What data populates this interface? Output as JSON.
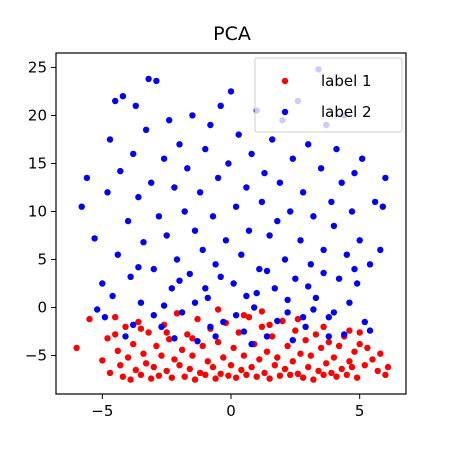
{
  "chart_data": {
    "type": "scatter",
    "title": "PCA",
    "xlabel": "",
    "ylabel": "",
    "xlim": [
      -6.8,
      6.8
    ],
    "ylim": [
      -9,
      26.5
    ],
    "xticks": [
      -5,
      0,
      5
    ],
    "xtick_labels": [
      "−5",
      "0",
      "5"
    ],
    "yticks": [
      -5,
      0,
      5,
      10,
      15,
      20,
      25
    ],
    "ytick_labels": [
      "−5",
      "0",
      "5",
      "10",
      "15",
      "20",
      "25"
    ],
    "grid": false,
    "legend": {
      "placement": "top-right"
    },
    "series": [
      {
        "name": "label 1",
        "color": "#ff0000",
        "points": [
          [
            -6.0,
            -4.2
          ],
          [
            -5.5,
            -1.2
          ],
          [
            -5.0,
            -5.5
          ],
          [
            -4.8,
            -3.2
          ],
          [
            -4.7,
            -6.8
          ],
          [
            -4.5,
            -1.0
          ],
          [
            -4.4,
            -4.5
          ],
          [
            -4.3,
            -6.0
          ],
          [
            -4.2,
            -7.2
          ],
          [
            -4.1,
            -2.0
          ],
          [
            -4.0,
            -5.2
          ],
          [
            -3.9,
            -7.5
          ],
          [
            -3.8,
            -3.8
          ],
          [
            -3.7,
            -6.5
          ],
          [
            -3.6,
            -1.5
          ],
          [
            -3.5,
            -7.0
          ],
          [
            -3.4,
            -4.8
          ],
          [
            -3.3,
            -5.8
          ],
          [
            -3.2,
            -2.6
          ],
          [
            -3.1,
            -7.4
          ],
          [
            -3.0,
            -6.2
          ],
          [
            -2.9,
            -4.0
          ],
          [
            -2.8,
            -7.1
          ],
          [
            -2.7,
            -5.0
          ],
          [
            -2.6,
            -1.8
          ],
          [
            -2.5,
            -6.6
          ],
          [
            -2.4,
            -3.3
          ],
          [
            -2.3,
            -7.3
          ],
          [
            -2.2,
            -5.4
          ],
          [
            -2.1,
            -0.6
          ],
          [
            -2.0,
            -6.0
          ],
          [
            -1.9,
            -4.4
          ],
          [
            -1.8,
            -7.2
          ],
          [
            -1.7,
            -2.8
          ],
          [
            -1.6,
            -6.4
          ],
          [
            -1.5,
            -5.0
          ],
          [
            -1.4,
            -7.5
          ],
          [
            -1.3,
            -1.2
          ],
          [
            -1.2,
            -6.8
          ],
          [
            -1.1,
            -4.0
          ],
          [
            -1.0,
            -7.0
          ],
          [
            -0.9,
            -5.6
          ],
          [
            -0.8,
            -2.2
          ],
          [
            -0.7,
            -6.2
          ],
          [
            -0.6,
            -7.4
          ],
          [
            -0.5,
            -3.6
          ],
          [
            -0.4,
            -6.9
          ],
          [
            -0.3,
            -5.2
          ],
          [
            -0.2,
            -1.6
          ],
          [
            -0.1,
            -7.1
          ],
          [
            0.0,
            -6.0
          ],
          [
            0.1,
            -4.2
          ],
          [
            0.2,
            -7.3
          ],
          [
            0.3,
            -2.6
          ],
          [
            0.4,
            -6.5
          ],
          [
            0.5,
            -5.0
          ],
          [
            0.6,
            -7.0
          ],
          [
            0.7,
            -1.0
          ],
          [
            0.8,
            -6.2
          ],
          [
            0.9,
            -3.8
          ],
          [
            1.0,
            -7.2
          ],
          [
            1.1,
            -5.4
          ],
          [
            1.2,
            -2.0
          ],
          [
            1.3,
            -6.8
          ],
          [
            1.4,
            -4.6
          ],
          [
            1.5,
            -7.4
          ],
          [
            1.6,
            -3.0
          ],
          [
            1.7,
            -6.0
          ],
          [
            1.8,
            -5.2
          ],
          [
            1.9,
            -7.1
          ],
          [
            2.0,
            -1.4
          ],
          [
            2.1,
            -6.4
          ],
          [
            2.2,
            -4.0
          ],
          [
            2.3,
            -7.0
          ],
          [
            2.4,
            -5.6
          ],
          [
            2.5,
            -2.4
          ],
          [
            2.6,
            -6.9
          ],
          [
            2.7,
            -4.8
          ],
          [
            2.8,
            -7.3
          ],
          [
            2.9,
            -3.4
          ],
          [
            3.0,
            -6.2
          ],
          [
            3.1,
            -5.0
          ],
          [
            3.2,
            -7.5
          ],
          [
            3.3,
            -2.8
          ],
          [
            3.4,
            -6.6
          ],
          [
            3.5,
            -4.2
          ],
          [
            3.6,
            -7.0
          ],
          [
            3.7,
            -5.8
          ],
          [
            3.8,
            -3.6
          ],
          [
            3.9,
            -6.8
          ],
          [
            4.0,
            -5.2
          ],
          [
            4.1,
            -7.2
          ],
          [
            4.2,
            -4.0
          ],
          [
            4.3,
            -6.4
          ],
          [
            4.4,
            -3.0
          ],
          [
            4.5,
            -7.0
          ],
          [
            4.6,
            -5.6
          ],
          [
            4.7,
            -6.2
          ],
          [
            4.8,
            -4.6
          ],
          [
            4.9,
            -7.3
          ],
          [
            5.0,
            -3.8
          ],
          [
            5.2,
            -6.0
          ],
          [
            5.3,
            -4.2
          ],
          [
            5.5,
            -5.4
          ],
          [
            5.7,
            -6.6
          ],
          [
            5.8,
            -4.8
          ],
          [
            6.0,
            -7.0
          ],
          [
            6.1,
            -6.2
          ],
          [
            -3.5,
            -2.2
          ],
          [
            -1.5,
            -3.2
          ],
          [
            0.5,
            -0.8
          ],
          [
            1.5,
            -1.8
          ],
          [
            2.6,
            -1.2
          ],
          [
            3.6,
            -2.0
          ],
          [
            4.6,
            -2.4
          ],
          [
            -2.5,
            -2.6
          ],
          [
            -0.5,
            -0.2
          ],
          [
            1.2,
            -0.4
          ],
          [
            -4.5,
            -2.8
          ],
          [
            5.0,
            -2.6
          ]
        ]
      },
      {
        "name": "label 2",
        "color": "#0000ff",
        "points": [
          [
            -5.8,
            10.5
          ],
          [
            -5.6,
            13.5
          ],
          [
            -5.3,
            7.2
          ],
          [
            -5.0,
            2.5
          ],
          [
            -4.9,
            -1.0
          ],
          [
            -4.8,
            12.0
          ],
          [
            -4.7,
            17.5
          ],
          [
            -4.5,
            21.5
          ],
          [
            -4.4,
            5.5
          ],
          [
            -4.3,
            14.2
          ],
          [
            -4.2,
            22.0
          ],
          [
            -4.1,
            -3.0
          ],
          [
            -4.0,
            9.0
          ],
          [
            -3.9,
            3.2
          ],
          [
            -3.8,
            16.0
          ],
          [
            -3.7,
            21.0
          ],
          [
            -3.6,
            11.5
          ],
          [
            -3.5,
            0.5
          ],
          [
            -3.4,
            6.8
          ],
          [
            -3.3,
            18.5
          ],
          [
            -3.2,
            23.8
          ],
          [
            -3.1,
            13.0
          ],
          [
            -3.0,
            4.0
          ],
          [
            -2.9,
            23.6
          ],
          [
            -2.8,
            9.5
          ],
          [
            -2.7,
            -2.0
          ],
          [
            -2.6,
            15.5
          ],
          [
            -2.5,
            7.5
          ],
          [
            -2.4,
            19.5
          ],
          [
            -2.3,
            2.0
          ],
          [
            -2.2,
            12.5
          ],
          [
            -2.1,
            5.0
          ],
          [
            -2.0,
            17.0
          ],
          [
            -1.9,
            -0.5
          ],
          [
            -1.8,
            10.0
          ],
          [
            -1.7,
            14.5
          ],
          [
            -1.6,
            3.5
          ],
          [
            -1.5,
            20.0
          ],
          [
            -1.4,
            8.0
          ],
          [
            -1.3,
            -3.5
          ],
          [
            -1.2,
            12.0
          ],
          [
            -1.1,
            6.0
          ],
          [
            -1.0,
            16.5
          ],
          [
            -0.9,
            1.0
          ],
          [
            -0.8,
            19.0
          ],
          [
            -0.7,
            9.5
          ],
          [
            -0.6,
            4.5
          ],
          [
            -0.5,
            13.5
          ],
          [
            -0.4,
            21.0
          ],
          [
            -0.3,
            -1.5
          ],
          [
            -0.2,
            7.0
          ],
          [
            -0.1,
            15.0
          ],
          [
            0.0,
            22.5
          ],
          [
            0.1,
            2.5
          ],
          [
            0.2,
            10.5
          ],
          [
            0.3,
            18.0
          ],
          [
            0.4,
            5.5
          ],
          [
            0.5,
            -2.5
          ],
          [
            0.6,
            12.5
          ],
          [
            0.7,
            8.0
          ],
          [
            0.8,
            16.0
          ],
          [
            0.9,
            0.0
          ],
          [
            1.0,
            20.5
          ],
          [
            1.1,
            4.0
          ],
          [
            1.2,
            11.0
          ],
          [
            1.3,
            14.0
          ],
          [
            1.4,
            -3.0
          ],
          [
            1.5,
            7.5
          ],
          [
            1.6,
            17.5
          ],
          [
            1.7,
            2.0
          ],
          [
            1.8,
            9.0
          ],
          [
            1.9,
            13.0
          ],
          [
            2.0,
            19.5
          ],
          [
            2.1,
            5.0
          ],
          [
            2.2,
            -0.5
          ],
          [
            2.3,
            10.0
          ],
          [
            2.4,
            15.5
          ],
          [
            2.5,
            3.0
          ],
          [
            2.6,
            21.5
          ],
          [
            2.7,
            7.0
          ],
          [
            2.8,
            12.0
          ],
          [
            2.9,
            -2.0
          ],
          [
            3.0,
            17.0
          ],
          [
            3.1,
            4.5
          ],
          [
            3.2,
            9.5
          ],
          [
            3.3,
            1.0
          ],
          [
            3.4,
            24.8
          ],
          [
            3.5,
            14.5
          ],
          [
            3.6,
            6.0
          ],
          [
            3.7,
            19.0
          ],
          [
            3.8,
            -1.0
          ],
          [
            3.9,
            11.0
          ],
          [
            4.0,
            8.5
          ],
          [
            4.1,
            16.5
          ],
          [
            4.2,
            3.0
          ],
          [
            4.3,
            13.0
          ],
          [
            4.4,
            20.0
          ],
          [
            4.5,
            5.5
          ],
          [
            4.6,
            0.5
          ],
          [
            4.7,
            10.0
          ],
          [
            4.8,
            14.0
          ],
          [
            4.9,
            2.5
          ],
          [
            5.0,
            7.0
          ],
          [
            5.1,
            15.5
          ],
          [
            5.2,
            -1.5
          ],
          [
            5.4,
            4.5
          ],
          [
            5.6,
            11.0
          ],
          [
            5.8,
            6.0
          ],
          [
            5.9,
            10.5
          ],
          [
            6.0,
            13.5
          ],
          [
            -5.2,
            -0.2
          ],
          [
            -3.8,
            -1.8
          ],
          [
            -2.2,
            -3.2
          ],
          [
            -0.8,
            -2.0
          ],
          [
            0.8,
            -3.8
          ],
          [
            2.4,
            -3.4
          ],
          [
            3.8,
            -3.0
          ],
          [
            5.4,
            -2.4
          ],
          [
            -4.6,
            1.2
          ],
          [
            -3.0,
            -0.8
          ],
          [
            -1.4,
            0.5
          ],
          [
            0.2,
            -0.8
          ],
          [
            1.8,
            -1.4
          ],
          [
            3.2,
            -0.2
          ],
          [
            4.4,
            -2.8
          ],
          [
            -2.6,
            0.2
          ],
          [
            -0.6,
            -3.0
          ],
          [
            1.0,
            1.5
          ],
          [
            2.8,
            -1.0
          ],
          [
            4.0,
            -0.5
          ],
          [
            -3.6,
            4.2
          ],
          [
            -2.0,
            2.8
          ],
          [
            -0.4,
            3.2
          ],
          [
            1.4,
            3.8
          ],
          [
            3.0,
            2.2
          ],
          [
            4.8,
            4.0
          ],
          [
            -1.0,
            2.0
          ],
          [
            0.6,
            1.2
          ],
          [
            2.2,
            0.8
          ],
          [
            3.6,
            3.6
          ]
        ]
      }
    ]
  }
}
